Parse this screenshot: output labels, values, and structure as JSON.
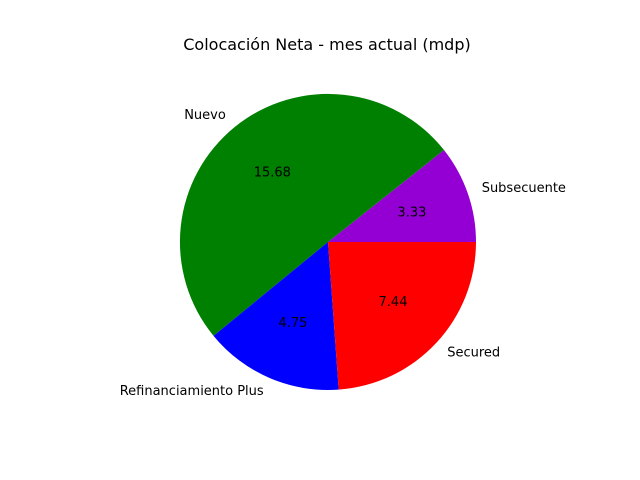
{
  "chart_data": {
    "type": "pie",
    "title": "Colocación Neta - mes actual (mdp)",
    "slices": [
      {
        "name": "Subsecuente",
        "value": 3.33,
        "label": "3.33",
        "color": "#9400D3"
      },
      {
        "name": "Nuevo",
        "value": 15.68,
        "label": "15.68",
        "color": "#008000"
      },
      {
        "name": "Refinanciamiento Plus",
        "value": 4.75,
        "label": "4.75",
        "color": "#0000FF"
      },
      {
        "name": "Secured",
        "value": 7.44,
        "label": "7.44",
        "color": "#FF0000"
      }
    ],
    "start_angle_deg": 0,
    "direction": "counterclockwise"
  }
}
